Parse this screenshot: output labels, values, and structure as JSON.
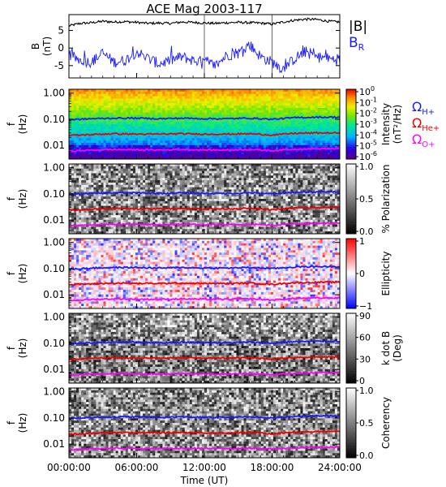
{
  "title": "ACE Mag 2003-117",
  "time_axis": {
    "label": "Time (UT)",
    "ticks": [
      "00:00:00",
      "06:00:00",
      "12:00:00",
      "18:00:00",
      "24:00:00"
    ],
    "range_hours": [
      0,
      24
    ]
  },
  "colors": {
    "black": "#000000",
    "blue": "#1a1aff",
    "red": "#ee0000",
    "magenta": "#ff00ff"
  },
  "chart_data": [
    {
      "type": "line",
      "ylabel_top": "B",
      "ylabel_unit": "(nT)",
      "ylim": [
        -8.5,
        9.5
      ],
      "yticks": [
        5,
        0,
        -5
      ],
      "x_hours": [
        0,
        1,
        2,
        3,
        4,
        5,
        6,
        7,
        8,
        9,
        10,
        11,
        12,
        13,
        14,
        15,
        16,
        17,
        18,
        19,
        20,
        21,
        22,
        23,
        24
      ],
      "series": [
        {
          "name": "|B|",
          "color": "#000000",
          "values": [
            6.3,
            7.0,
            7.2,
            7.6,
            7.4,
            7.5,
            7.3,
            7.0,
            7.1,
            7.0,
            7.4,
            7.3,
            7.1,
            7.0,
            7.2,
            7.3,
            7.2,
            7.1,
            6.8,
            7.4,
            7.9,
            8.2,
            8.1,
            7.6,
            7.4
          ]
        },
        {
          "name": "B_R",
          "color": "#1a1aff",
          "values": [
            -2.0,
            -3.5,
            -4.0,
            -1.5,
            -4.0,
            -3.5,
            -1.0,
            -3.0,
            -4.5,
            -3.5,
            -2.5,
            -3.5,
            -4.0,
            -5.0,
            -2.0,
            -1.5,
            1.0,
            -2.5,
            -4.0,
            -6.0,
            -3.0,
            -1.0,
            -2.5,
            -3.0,
            -3.5
          ]
        }
      ],
      "legend": [
        {
          "label": "|B|",
          "color": "#000000"
        },
        {
          "label": "B",
          "sub": "R",
          "color": "#1a1aff"
        }
      ]
    },
    {
      "type": "heatmap",
      "ylabel_top": "f",
      "ylabel_unit": "(Hz)",
      "yscale": "log",
      "ylim": [
        0.003,
        1.4
      ],
      "yticks": [
        "1.00",
        "0.10",
        "0.01"
      ],
      "colormap": "rainbow",
      "colorbar_label": "Intensity",
      "colorbar_unit": "(nT²/Hz)",
      "colorbar_ticks": [
        {
          "base": "10",
          "exp": "0"
        },
        {
          "base": "10",
          "exp": "-1"
        },
        {
          "base": "10",
          "exp": "-2"
        },
        {
          "base": "10",
          "exp": "-3"
        },
        {
          "base": "10",
          "exp": "-4"
        },
        {
          "base": "10",
          "exp": "-5"
        },
        {
          "base": "10",
          "exp": "-6"
        }
      ],
      "gyro_legend": [
        {
          "symbol": "Ω",
          "sub": "H+",
          "color": "#1a1aff"
        },
        {
          "symbol": "Ω",
          "sub": "He+",
          "color": "#ee0000"
        },
        {
          "symbol": "Ω",
          "sub": "O+",
          "color": "#ff00ff"
        }
      ]
    },
    {
      "type": "heatmap",
      "ylabel_top": "f",
      "ylabel_unit": "(Hz)",
      "yscale": "log",
      "ylim": [
        0.003,
        1.4
      ],
      "yticks": [
        "1.00",
        "0.10",
        "0.01"
      ],
      "colormap": "gray",
      "colorbar_label": "% Polarization",
      "colorbar_ticks": [
        "1.0",
        "0.5",
        "0.0"
      ]
    },
    {
      "type": "heatmap",
      "ylabel_top": "f",
      "ylabel_unit": "(Hz)",
      "yscale": "log",
      "ylim": [
        0.003,
        1.4
      ],
      "yticks": [
        "1.00",
        "0.10",
        "0.01"
      ],
      "colormap": "bwr",
      "colorbar_label": "Ellipticity",
      "colorbar_ticks": [
        "1",
        "0",
        "−1"
      ]
    },
    {
      "type": "heatmap",
      "ylabel_top": "f",
      "ylabel_unit": "(Hz)",
      "yscale": "log",
      "ylim": [
        0.003,
        1.4
      ],
      "yticks": [
        "1.00",
        "0.10",
        "0.01"
      ],
      "colormap": "gray",
      "colorbar_label": "k dot B",
      "colorbar_unit": "(Deg)",
      "colorbar_ticks": [
        "90",
        "60",
        "30",
        "0"
      ]
    },
    {
      "type": "heatmap",
      "ylabel_top": "f",
      "ylabel_unit": "(Hz)",
      "yscale": "log",
      "ylim": [
        0.003,
        1.4
      ],
      "yticks": [
        "1.00",
        "0.10",
        "0.01"
      ],
      "colormap": "gray",
      "colorbar_label": "Coherency",
      "colorbar_ticks": [
        "1.0",
        "0.5",
        "0.0"
      ]
    }
  ],
  "gyrofrequencies": {
    "x_hours": [
      0,
      2,
      4,
      6,
      8,
      10,
      12,
      14,
      16,
      18,
      20,
      22,
      24
    ],
    "H+": [
      0.095,
      0.105,
      0.11,
      0.11,
      0.105,
      0.11,
      0.105,
      0.105,
      0.11,
      0.1,
      0.115,
      0.12,
      0.12
    ],
    "He+": [
      0.024,
      0.026,
      0.028,
      0.027,
      0.027,
      0.028,
      0.027,
      0.027,
      0.028,
      0.025,
      0.029,
      0.03,
      0.03
    ],
    "O+": [
      0.006,
      0.0066,
      0.007,
      0.0068,
      0.0067,
      0.007,
      0.0067,
      0.0067,
      0.007,
      0.0063,
      0.0072,
      0.0075,
      0.0075
    ]
  }
}
